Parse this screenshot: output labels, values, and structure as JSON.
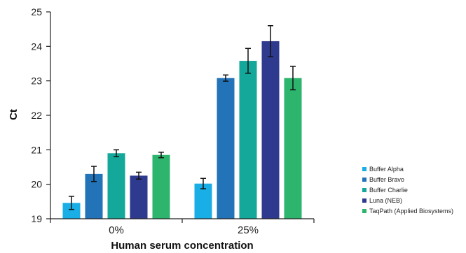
{
  "chart_data": {
    "type": "bar",
    "title": "",
    "xlabel": "Human serum concentration",
    "ylabel": "Ct",
    "ylim": [
      19,
      25
    ],
    "yticks": [
      "19",
      "20",
      "21",
      "22",
      "23",
      "24",
      "25"
    ],
    "categories": [
      "0%",
      "25%"
    ],
    "grid": false,
    "legend_position": "right",
    "series": [
      {
        "name": "Buffer Alpha",
        "color": "#19aee6",
        "values": [
          19.46,
          20.02
        ],
        "errors": [
          0.19,
          0.15
        ]
      },
      {
        "name": "Buffer Bravo",
        "color": "#2273b8",
        "values": [
          20.3,
          23.08
        ],
        "errors": [
          0.22,
          0.09
        ]
      },
      {
        "name": "Buffer Charlie",
        "color": "#14a89a",
        "values": [
          20.9,
          23.58
        ],
        "errors": [
          0.1,
          0.36
        ]
      },
      {
        "name": "Luna (NEB)",
        "color": "#2e3a8e",
        "values": [
          20.25,
          24.15
        ],
        "errors": [
          0.1,
          0.45
        ]
      },
      {
        "name": "TaqPath (Applied Biosystems)",
        "color": "#2db56e",
        "values": [
          20.85,
          23.08
        ],
        "errors": [
          0.08,
          0.34
        ]
      }
    ]
  }
}
